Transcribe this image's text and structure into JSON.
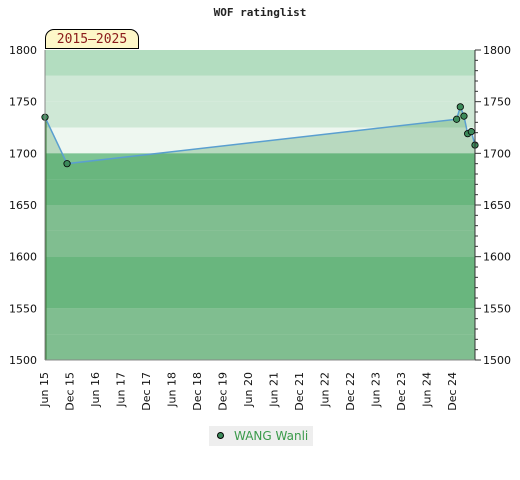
{
  "title": "WOF ratinglist",
  "period_badge": "2015–2025",
  "legend": {
    "label": "WANG Wanli",
    "marker_color": "#3c8a5a"
  },
  "chart_data": {
    "type": "line",
    "title": "WOF ratinglist",
    "xlabel": "",
    "ylabel": "",
    "ylim": [
      1500,
      1800
    ],
    "yticks": [
      1500,
      1550,
      1600,
      1650,
      1700,
      1750,
      1800
    ],
    "x_tick_labels": [
      "Jun 15",
      "Dec 15",
      "Jun 16",
      "Jun 17",
      "Dec 17",
      "Jun 18",
      "Dec 18",
      "Dec 19",
      "Jun 20",
      "Jun 21",
      "Dec 21",
      "Jun 22",
      "Dec 22",
      "Jun 23",
      "Dec 23",
      "Jun 24",
      "Dec 24"
    ],
    "grid": true,
    "legend_position": "bottom-center",
    "series": [
      {
        "name": "WANG Wanli",
        "color": "#5a9fd0",
        "marker_color": "#3c8a5a",
        "points": [
          {
            "x": "Jun 15",
            "y": 1735
          },
          {
            "x": "Dec 15",
            "y": 1690
          },
          {
            "x": "Oct 24",
            "y": 1733
          },
          {
            "x": "Nov 24",
            "y": 1745
          },
          {
            "x": "Dec 24",
            "y": 1736
          },
          {
            "x": "Jan 25",
            "y": 1719
          },
          {
            "x": "Feb 25",
            "y": 1721
          },
          {
            "x": "Mar 25",
            "y": 1708
          }
        ]
      }
    ],
    "band_colors": {
      "light": "#eef7f0",
      "mid": "#cfe8d6",
      "green": "#9ed0ac",
      "deep": "#7dc493",
      "upper": "#b3ddc0"
    }
  }
}
